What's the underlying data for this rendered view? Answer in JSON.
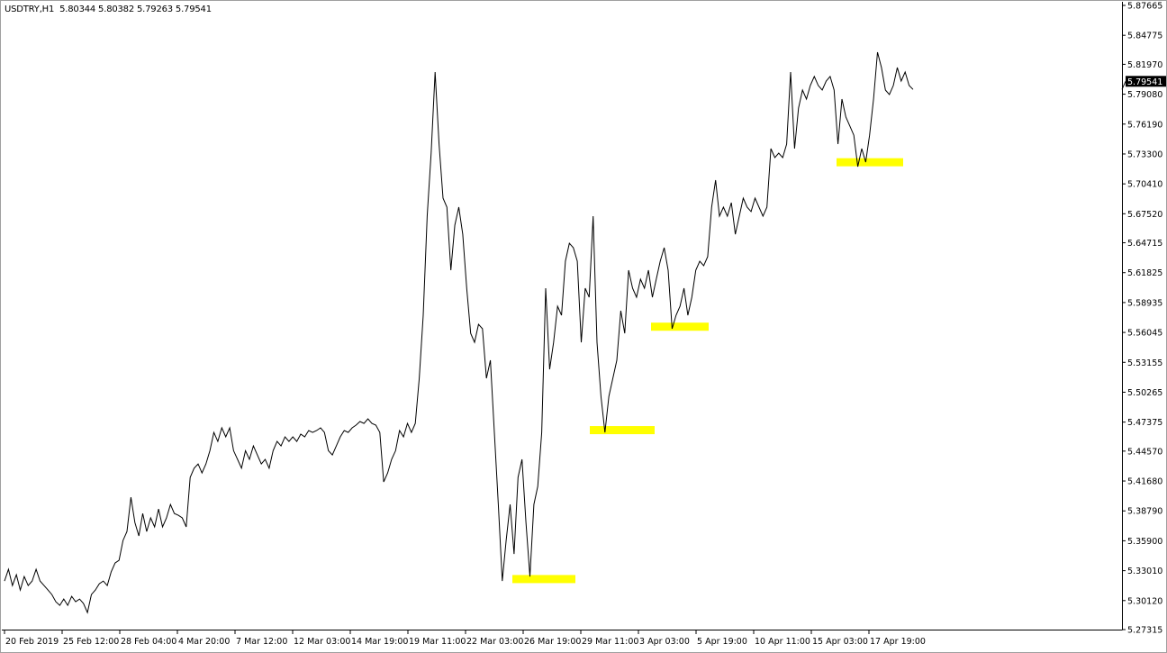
{
  "header": {
    "symbol": "USDTRY,H1",
    "ohlc": "5.80344 5.80382 5.79263 5.79541"
  },
  "chart_data": {
    "type": "line",
    "title": "USDTRY,H1",
    "ylim": [
      5.27315,
      5.87665
    ],
    "y_ticks": [
      "5.87665",
      "5.84775",
      "5.81970",
      "5.79080",
      "5.76190",
      "5.73300",
      "5.70410",
      "5.67520",
      "5.64715",
      "5.61825",
      "5.58935",
      "5.56045",
      "5.53155",
      "5.50265",
      "5.47375",
      "5.44570",
      "5.41680",
      "5.38790",
      "5.35900",
      "5.33010",
      "5.30120",
      "5.27315"
    ],
    "x_ticks": [
      "20 Feb 2019",
      "25 Feb 12:00",
      "28 Feb 04:00",
      "4 Mar 20:00",
      "7 Mar 12:00",
      "12 Mar 03:00",
      "14 Mar 19:00",
      "19 Mar 11:00",
      "22 Mar 03:00",
      "26 Mar 19:00",
      "29 Mar 11:00",
      "3 Apr 03:00",
      "5 Apr 19:00",
      "10 Apr 11:00",
      "15 Apr 03:00",
      "17 Apr 19:00"
    ],
    "grid": false,
    "current_price": "5.79541",
    "line_color": "#000000",
    "series": [
      {
        "values": [
          5.3201,
          5.3314,
          5.3157,
          5.3262,
          5.3114,
          5.3244,
          5.3157,
          5.3201,
          5.3314,
          5.3201,
          5.3157,
          5.3114,
          5.307,
          5.3001,
          5.2966,
          5.3027,
          5.2966,
          5.3053,
          5.3001,
          5.3027,
          5.2984,
          5.2896,
          5.307,
          5.3114,
          5.3175,
          5.3201,
          5.3157,
          5.3288,
          5.3375,
          5.3401,
          5.3593,
          5.368,
          5.4011,
          5.3767,
          5.3637,
          5.3854,
          5.368,
          5.3811,
          5.3724,
          5.3898,
          5.3724,
          5.3811,
          5.3941,
          5.3854,
          5.3837,
          5.3811,
          5.3724,
          5.4203,
          5.4292,
          5.4333,
          5.4246,
          5.4333,
          5.4461,
          5.4638,
          5.4551,
          5.4682,
          5.4595,
          5.4682,
          5.4461,
          5.4377,
          5.4292,
          5.4461,
          5.4377,
          5.4507,
          5.442,
          5.4333,
          5.4377,
          5.4292,
          5.4461,
          5.4551,
          5.4507,
          5.4595,
          5.4551,
          5.4595,
          5.4551,
          5.4621,
          5.4595,
          5.4656,
          5.4638,
          5.4656,
          5.4682,
          5.4638,
          5.4461,
          5.442,
          5.4507,
          5.4595,
          5.4656,
          5.4638,
          5.4682,
          5.4708,
          5.4743,
          5.4725,
          5.4769,
          5.4725,
          5.4708,
          5.4638,
          5.4159,
          5.4246,
          5.4377,
          5.4461,
          5.4656,
          5.4595,
          5.4725,
          5.4638,
          5.4725,
          5.5161,
          5.5771,
          5.6729,
          5.7338,
          5.8122,
          5.7425,
          5.6903,
          5.6816,
          5.6206,
          5.6642,
          5.6816,
          5.6554,
          5.6032,
          5.5596,
          5.5509,
          5.5683,
          5.564,
          5.5161,
          5.5335,
          5.4638,
          5.3941,
          5.3201,
          5.3593,
          5.3941,
          5.3462,
          5.4203,
          5.4377,
          5.3767,
          5.3244,
          5.3941,
          5.4116,
          5.4638,
          5.6032,
          5.5248,
          5.5509,
          5.5858,
          5.5771,
          5.6293,
          5.6467,
          5.6424,
          5.6293,
          5.5509,
          5.6032,
          5.5945,
          5.6729,
          5.5509,
          5.4987,
          5.4638,
          5.4987,
          5.5161,
          5.5335,
          5.5814,
          5.5596,
          5.6206,
          5.6032,
          5.5945,
          5.6119,
          5.6032,
          5.6206,
          5.5945,
          5.6119,
          5.6293,
          5.6424,
          5.6206,
          5.564,
          5.5771,
          5.5858,
          5.6032,
          5.5771,
          5.5945,
          5.6206,
          5.6293,
          5.625,
          5.6337,
          5.6816,
          5.7077,
          5.6729,
          5.6816,
          5.6729,
          5.6859,
          5.6554,
          5.6729,
          5.6903,
          5.6816,
          5.6773,
          5.6903,
          5.6816,
          5.6729,
          5.6816,
          5.7382,
          5.7295,
          5.7338,
          5.7295,
          5.7425,
          5.8122,
          5.7382,
          5.7774,
          5.7948,
          5.7861,
          5.7992,
          5.8079,
          5.7992,
          5.7948,
          5.8035,
          5.8079,
          5.7948,
          5.7425,
          5.7861,
          5.7687,
          5.76,
          5.7512,
          5.7208,
          5.7382,
          5.7251,
          5.7512,
          5.7861,
          5.8314,
          5.8166,
          5.7948,
          5.7904,
          5.7992,
          5.8166,
          5.8035,
          5.8122,
          5.7992,
          5.79541
        ]
      }
    ],
    "support_zones": {
      "color": "#ffff00",
      "levels": [
        5.322,
        5.466,
        5.566,
        5.725
      ]
    }
  }
}
